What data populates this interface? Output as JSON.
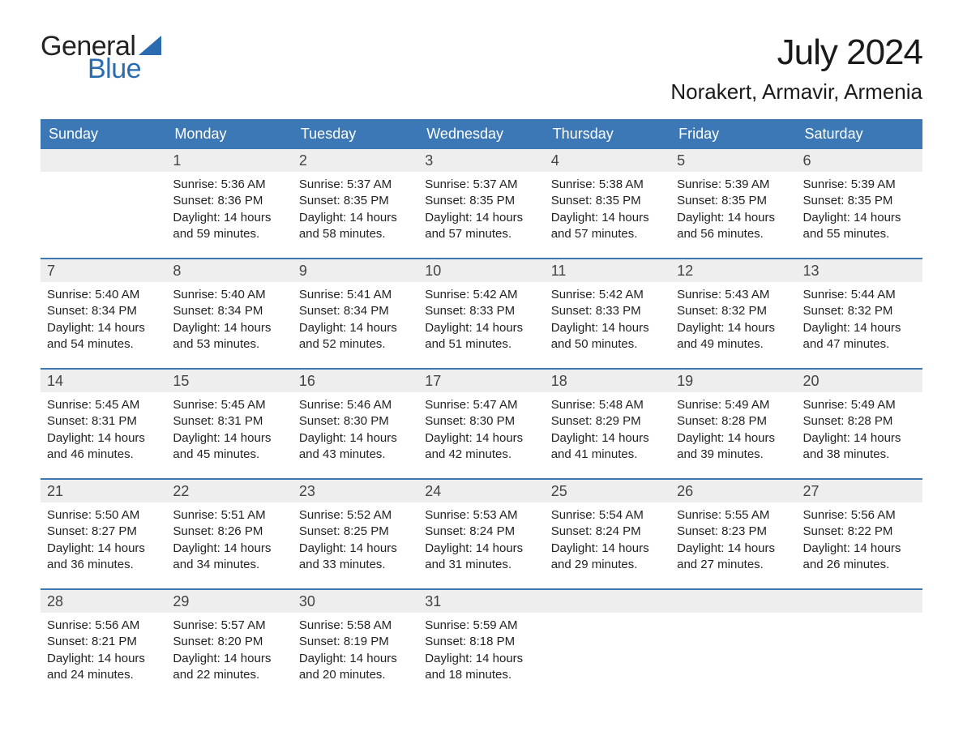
{
  "logo": {
    "text_general": "General",
    "text_blue": "Blue",
    "sail_color": "#2b6cb0",
    "general_color": "#222222",
    "blue_color": "#2b6cb0"
  },
  "header": {
    "month_title": "July 2024",
    "location": "Norakert, Armavir, Armenia",
    "title_fontsize": 44,
    "location_fontsize": 26,
    "text_color": "#1a1a1a"
  },
  "calendar": {
    "header_bg": "#3b78b5",
    "header_text_color": "#ffffff",
    "week_border_color": "#3b78b5",
    "daynum_bg": "#eeeeee",
    "daynum_color": "#444444",
    "content_color": "#222222",
    "background_color": "#ffffff",
    "weekday_fontsize": 18,
    "daynum_fontsize": 18,
    "content_fontsize": 15,
    "weekdays": [
      "Sunday",
      "Monday",
      "Tuesday",
      "Wednesday",
      "Thursday",
      "Friday",
      "Saturday"
    ],
    "weeks": [
      [
        {
          "num": "",
          "sunrise": "",
          "sunset": "",
          "daylight": ""
        },
        {
          "num": "1",
          "sunrise": "Sunrise: 5:36 AM",
          "sunset": "Sunset: 8:36 PM",
          "daylight": "Daylight: 14 hours and 59 minutes."
        },
        {
          "num": "2",
          "sunrise": "Sunrise: 5:37 AM",
          "sunset": "Sunset: 8:35 PM",
          "daylight": "Daylight: 14 hours and 58 minutes."
        },
        {
          "num": "3",
          "sunrise": "Sunrise: 5:37 AM",
          "sunset": "Sunset: 8:35 PM",
          "daylight": "Daylight: 14 hours and 57 minutes."
        },
        {
          "num": "4",
          "sunrise": "Sunrise: 5:38 AM",
          "sunset": "Sunset: 8:35 PM",
          "daylight": "Daylight: 14 hours and 57 minutes."
        },
        {
          "num": "5",
          "sunrise": "Sunrise: 5:39 AM",
          "sunset": "Sunset: 8:35 PM",
          "daylight": "Daylight: 14 hours and 56 minutes."
        },
        {
          "num": "6",
          "sunrise": "Sunrise: 5:39 AM",
          "sunset": "Sunset: 8:35 PM",
          "daylight": "Daylight: 14 hours and 55 minutes."
        }
      ],
      [
        {
          "num": "7",
          "sunrise": "Sunrise: 5:40 AM",
          "sunset": "Sunset: 8:34 PM",
          "daylight": "Daylight: 14 hours and 54 minutes."
        },
        {
          "num": "8",
          "sunrise": "Sunrise: 5:40 AM",
          "sunset": "Sunset: 8:34 PM",
          "daylight": "Daylight: 14 hours and 53 minutes."
        },
        {
          "num": "9",
          "sunrise": "Sunrise: 5:41 AM",
          "sunset": "Sunset: 8:34 PM",
          "daylight": "Daylight: 14 hours and 52 minutes."
        },
        {
          "num": "10",
          "sunrise": "Sunrise: 5:42 AM",
          "sunset": "Sunset: 8:33 PM",
          "daylight": "Daylight: 14 hours and 51 minutes."
        },
        {
          "num": "11",
          "sunrise": "Sunrise: 5:42 AM",
          "sunset": "Sunset: 8:33 PM",
          "daylight": "Daylight: 14 hours and 50 minutes."
        },
        {
          "num": "12",
          "sunrise": "Sunrise: 5:43 AM",
          "sunset": "Sunset: 8:32 PM",
          "daylight": "Daylight: 14 hours and 49 minutes."
        },
        {
          "num": "13",
          "sunrise": "Sunrise: 5:44 AM",
          "sunset": "Sunset: 8:32 PM",
          "daylight": "Daylight: 14 hours and 47 minutes."
        }
      ],
      [
        {
          "num": "14",
          "sunrise": "Sunrise: 5:45 AM",
          "sunset": "Sunset: 8:31 PM",
          "daylight": "Daylight: 14 hours and 46 minutes."
        },
        {
          "num": "15",
          "sunrise": "Sunrise: 5:45 AM",
          "sunset": "Sunset: 8:31 PM",
          "daylight": "Daylight: 14 hours and 45 minutes."
        },
        {
          "num": "16",
          "sunrise": "Sunrise: 5:46 AM",
          "sunset": "Sunset: 8:30 PM",
          "daylight": "Daylight: 14 hours and 43 minutes."
        },
        {
          "num": "17",
          "sunrise": "Sunrise: 5:47 AM",
          "sunset": "Sunset: 8:30 PM",
          "daylight": "Daylight: 14 hours and 42 minutes."
        },
        {
          "num": "18",
          "sunrise": "Sunrise: 5:48 AM",
          "sunset": "Sunset: 8:29 PM",
          "daylight": "Daylight: 14 hours and 41 minutes."
        },
        {
          "num": "19",
          "sunrise": "Sunrise: 5:49 AM",
          "sunset": "Sunset: 8:28 PM",
          "daylight": "Daylight: 14 hours and 39 minutes."
        },
        {
          "num": "20",
          "sunrise": "Sunrise: 5:49 AM",
          "sunset": "Sunset: 8:28 PM",
          "daylight": "Daylight: 14 hours and 38 minutes."
        }
      ],
      [
        {
          "num": "21",
          "sunrise": "Sunrise: 5:50 AM",
          "sunset": "Sunset: 8:27 PM",
          "daylight": "Daylight: 14 hours and 36 minutes."
        },
        {
          "num": "22",
          "sunrise": "Sunrise: 5:51 AM",
          "sunset": "Sunset: 8:26 PM",
          "daylight": "Daylight: 14 hours and 34 minutes."
        },
        {
          "num": "23",
          "sunrise": "Sunrise: 5:52 AM",
          "sunset": "Sunset: 8:25 PM",
          "daylight": "Daylight: 14 hours and 33 minutes."
        },
        {
          "num": "24",
          "sunrise": "Sunrise: 5:53 AM",
          "sunset": "Sunset: 8:24 PM",
          "daylight": "Daylight: 14 hours and 31 minutes."
        },
        {
          "num": "25",
          "sunrise": "Sunrise: 5:54 AM",
          "sunset": "Sunset: 8:24 PM",
          "daylight": "Daylight: 14 hours and 29 minutes."
        },
        {
          "num": "26",
          "sunrise": "Sunrise: 5:55 AM",
          "sunset": "Sunset: 8:23 PM",
          "daylight": "Daylight: 14 hours and 27 minutes."
        },
        {
          "num": "27",
          "sunrise": "Sunrise: 5:56 AM",
          "sunset": "Sunset: 8:22 PM",
          "daylight": "Daylight: 14 hours and 26 minutes."
        }
      ],
      [
        {
          "num": "28",
          "sunrise": "Sunrise: 5:56 AM",
          "sunset": "Sunset: 8:21 PM",
          "daylight": "Daylight: 14 hours and 24 minutes."
        },
        {
          "num": "29",
          "sunrise": "Sunrise: 5:57 AM",
          "sunset": "Sunset: 8:20 PM",
          "daylight": "Daylight: 14 hours and 22 minutes."
        },
        {
          "num": "30",
          "sunrise": "Sunrise: 5:58 AM",
          "sunset": "Sunset: 8:19 PM",
          "daylight": "Daylight: 14 hours and 20 minutes."
        },
        {
          "num": "31",
          "sunrise": "Sunrise: 5:59 AM",
          "sunset": "Sunset: 8:18 PM",
          "daylight": "Daylight: 14 hours and 18 minutes."
        },
        {
          "num": "",
          "sunrise": "",
          "sunset": "",
          "daylight": ""
        },
        {
          "num": "",
          "sunrise": "",
          "sunset": "",
          "daylight": ""
        },
        {
          "num": "",
          "sunrise": "",
          "sunset": "",
          "daylight": ""
        }
      ]
    ]
  }
}
